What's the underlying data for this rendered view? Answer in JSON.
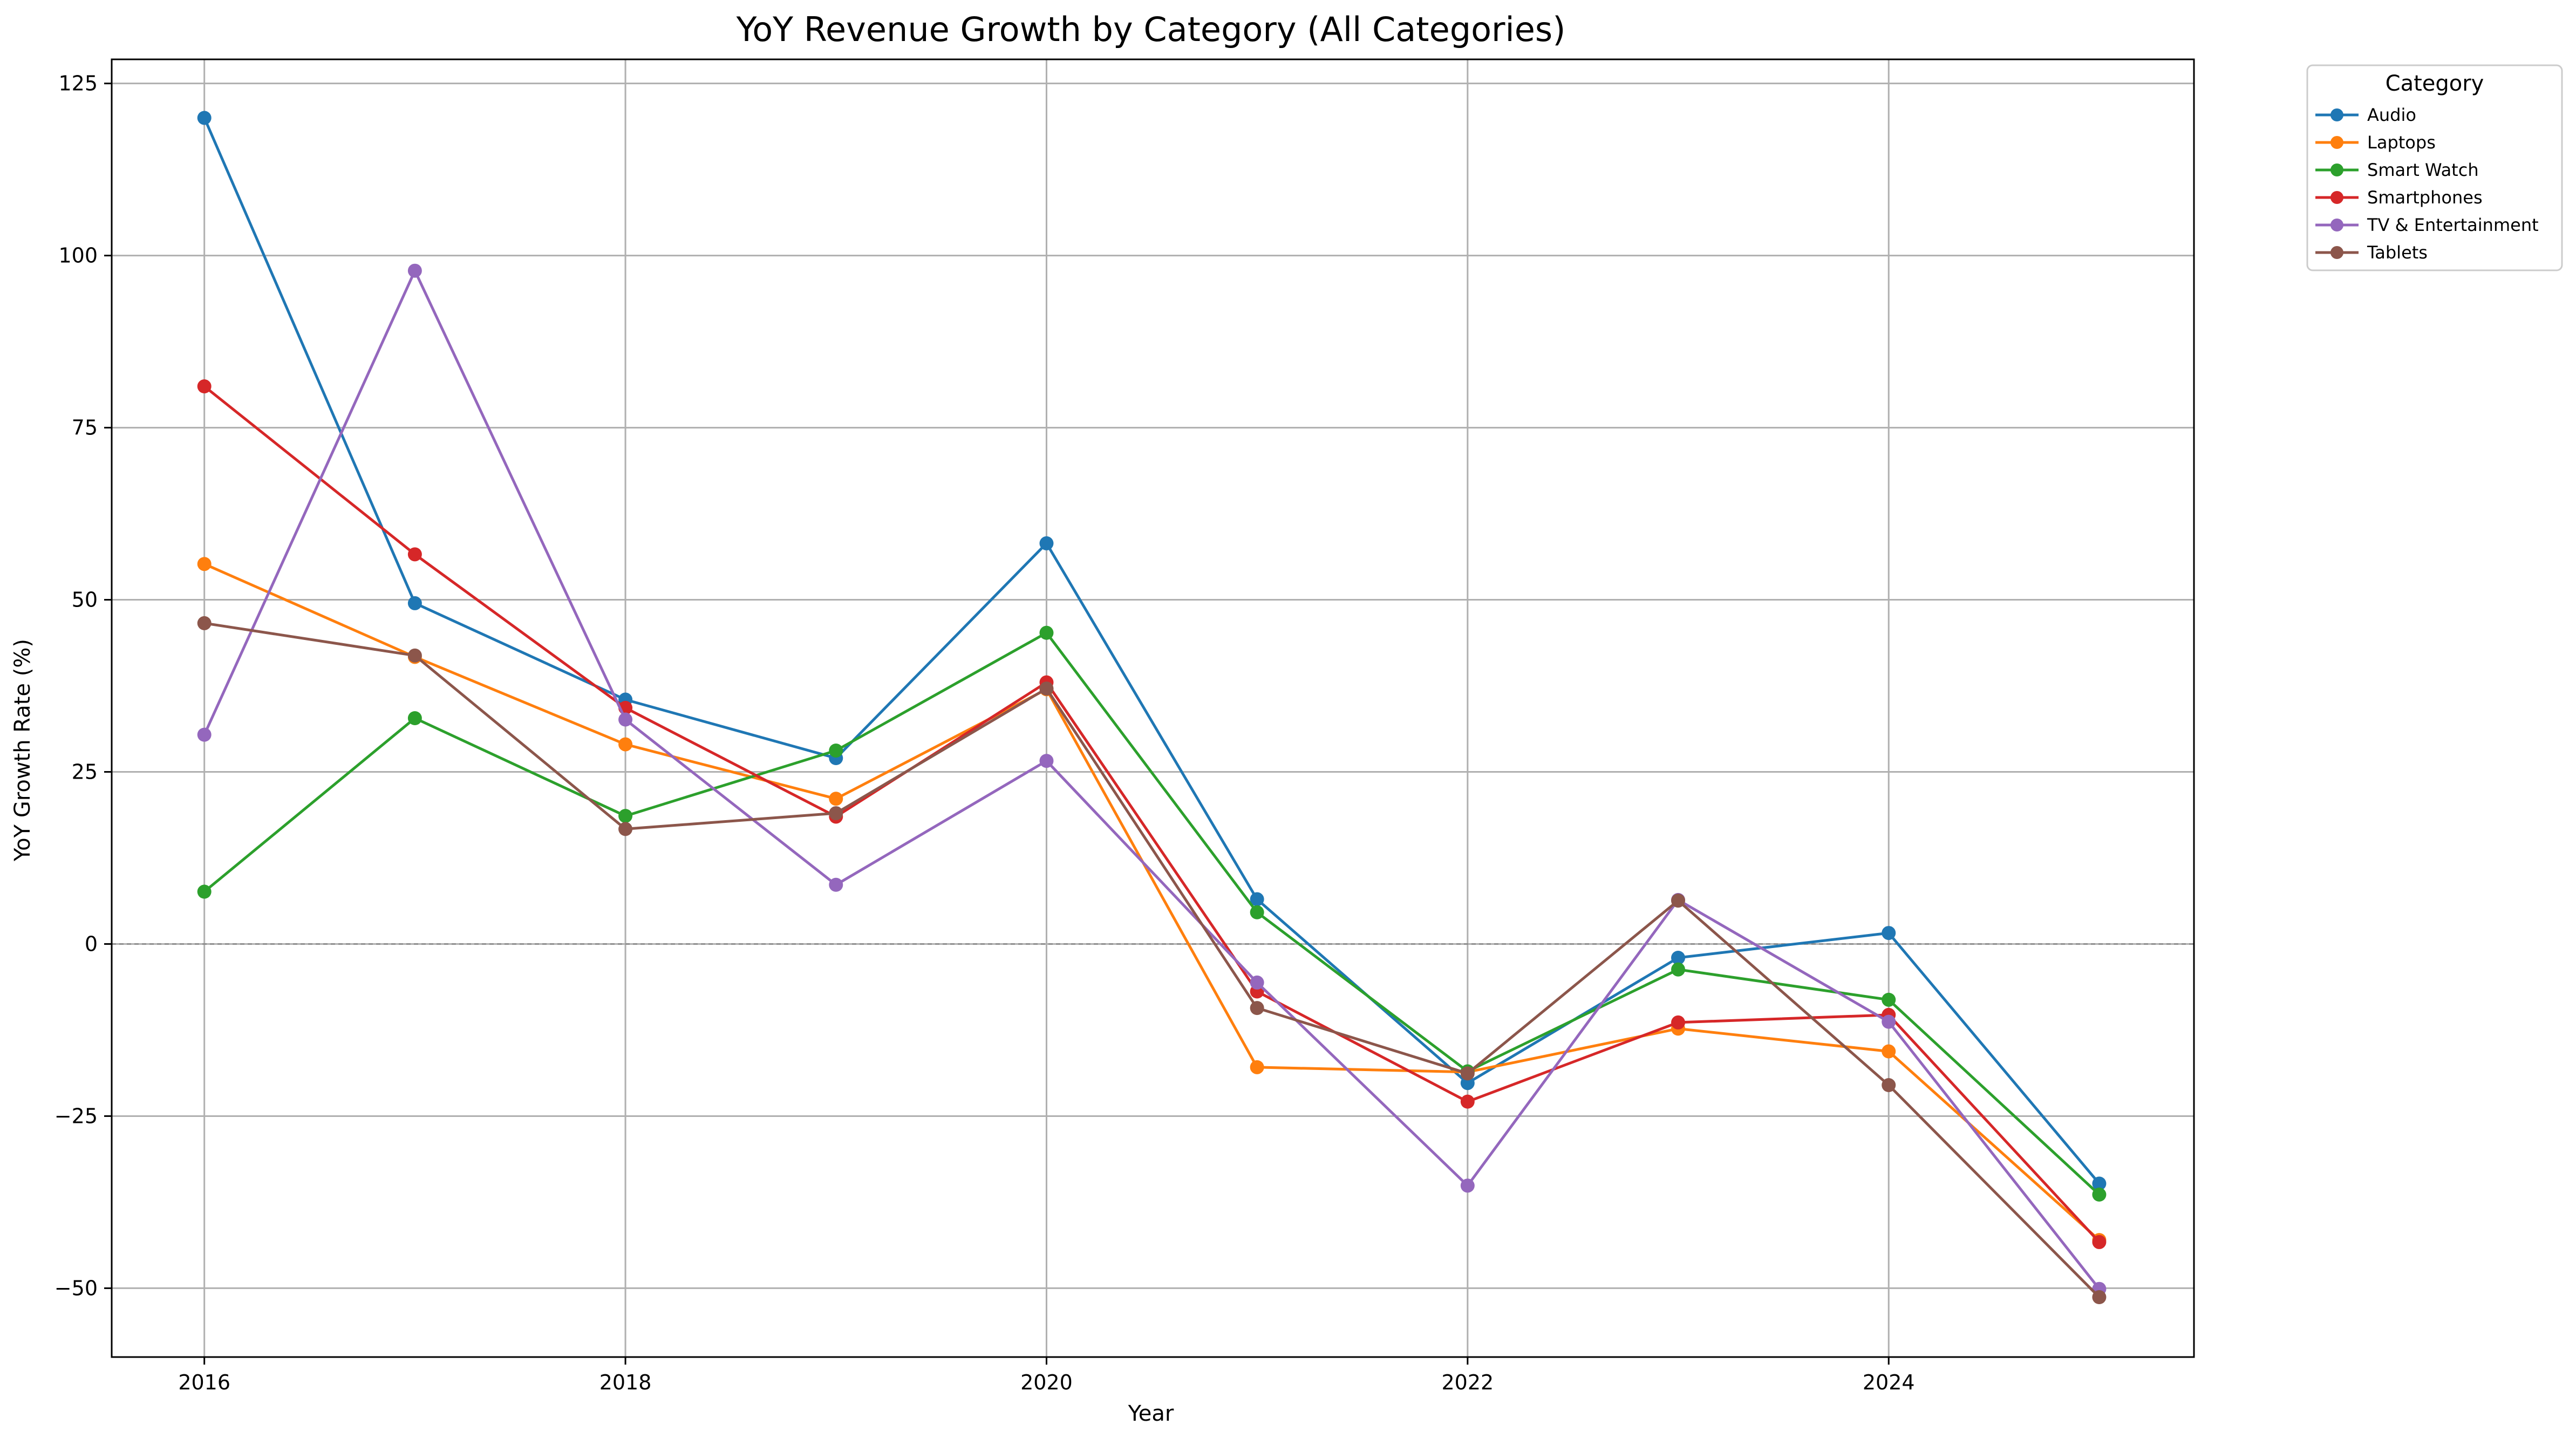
{
  "chart_data": {
    "type": "line",
    "title": "YoY Revenue Growth by Category (All Categories)",
    "xlabel": "Year",
    "ylabel": "YoY Growth Rate (%)",
    "x": [
      2016,
      2017,
      2018,
      2019,
      2020,
      2021,
      2022,
      2023,
      2024,
      2025
    ],
    "xlim": [
      2015.56,
      2025.45
    ],
    "ylim": [
      -60,
      128.5
    ],
    "xticks": [
      2016,
      2018,
      2020,
      2022,
      2024
    ],
    "yticks": [
      -50,
      -25,
      0,
      25,
      50,
      75,
      100,
      125
    ],
    "ytick_labels": [
      "−50",
      "−25",
      "0",
      "25",
      "50",
      "75",
      "100",
      "125"
    ],
    "grid": true,
    "zero_line": true,
    "legend_title": "Category",
    "legend_position": "outside-top-right",
    "series": [
      {
        "name": "Audio",
        "color": "#1f77b4",
        "values": [
          120,
          49.5,
          35.5,
          27,
          58.2,
          6.5,
          -20.2,
          -2,
          1.6,
          -34.8
        ]
      },
      {
        "name": "Laptops",
        "color": "#ff7f0e",
        "values": [
          55.2,
          41.7,
          29,
          21.1,
          37,
          -17.9,
          -18.6,
          -12.3,
          -15.6,
          -43
        ]
      },
      {
        "name": "Smart Watch",
        "color": "#2ca02c",
        "values": [
          7.6,
          32.8,
          18.6,
          28.1,
          45.2,
          4.6,
          -18.5,
          -3.7,
          -8.1,
          -36.4
        ]
      },
      {
        "name": "Smartphones",
        "color": "#d62728",
        "values": [
          81,
          56.6,
          34.3,
          18.5,
          38,
          -6.9,
          -22.9,
          -11.4,
          -10.3,
          -43.3
        ]
      },
      {
        "name": "TV & Entertainment",
        "color": "#9467bd",
        "values": [
          30.4,
          97.8,
          32.6,
          8.6,
          26.6,
          -5.6,
          -35.1,
          6.4,
          -11.3,
          -50.1
        ]
      },
      {
        "name": "Tablets",
        "color": "#8c564b",
        "values": [
          46.6,
          41.9,
          16.7,
          19,
          37.1,
          -9.3,
          -18.8,
          6.3,
          -20.5,
          -51.3
        ]
      }
    ]
  }
}
